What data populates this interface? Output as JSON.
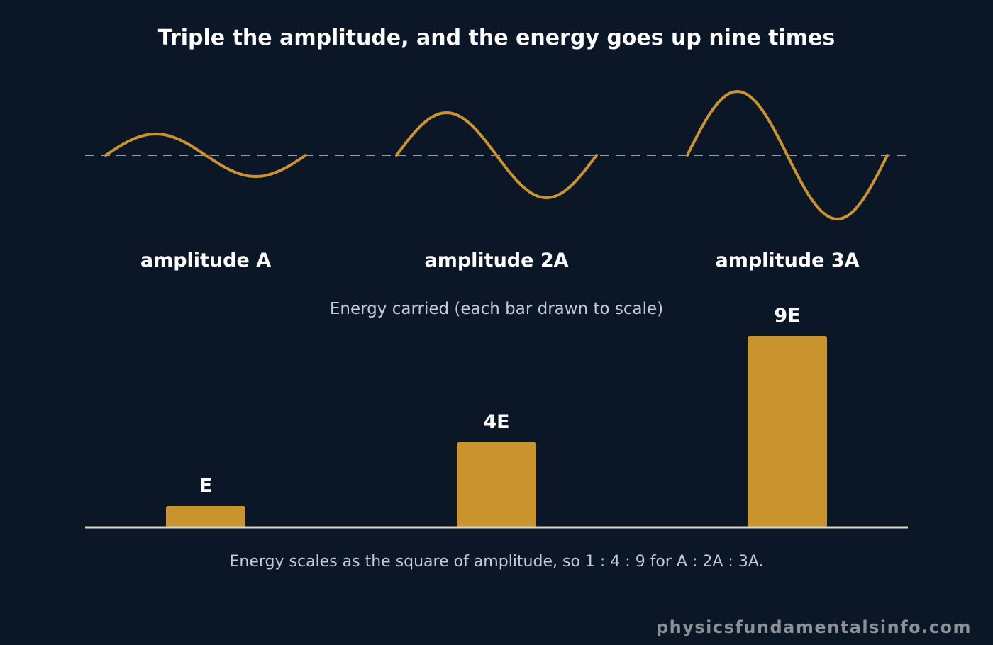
{
  "title": "Triple the amplitude, and the energy goes up nine times",
  "energy_heading": "Energy carried (each bar drawn to scale)",
  "caption": "Energy scales as the square of amplitude, so 1 : 4 : 9 for A : 2A : 3A.",
  "watermark": "physicsfundamentalsinfo.com",
  "colors": {
    "background": "#0b1627",
    "accent": "#c9932d",
    "dashed_axis": "#8f9bab",
    "baseline": "#dcd6c4"
  },
  "waves": [
    {
      "label": "amplitude A",
      "amplitude": 1
    },
    {
      "label": "amplitude 2A",
      "amplitude": 2
    },
    {
      "label": "amplitude 3A",
      "amplitude": 3
    }
  ],
  "chart_data": {
    "type": "bar",
    "categories": [
      "amplitude A",
      "amplitude 2A",
      "amplitude 3A"
    ],
    "values": [
      1,
      4,
      9
    ],
    "data_labels": [
      "E",
      "4E",
      "9E"
    ],
    "title": "Energy carried (each bar drawn to scale)",
    "xlabel": "",
    "ylabel": "",
    "ylim": [
      0,
      9
    ],
    "grid": false
  }
}
